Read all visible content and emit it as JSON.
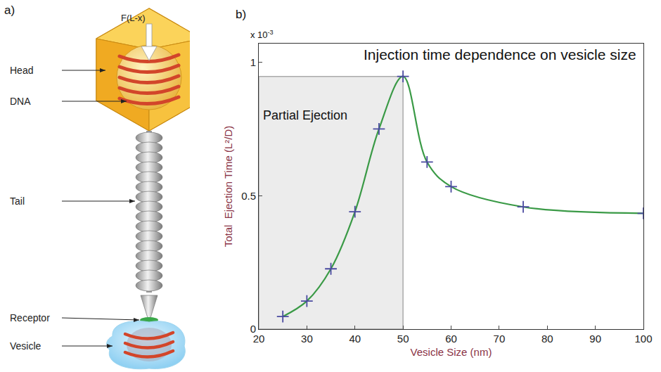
{
  "diagram": {
    "panel_label": "a)",
    "force_label": "F(L-x)",
    "parts": [
      {
        "label": "Head"
      },
      {
        "label": "DNA"
      },
      {
        "label": "Tail"
      },
      {
        "label": "Receptor"
      },
      {
        "label": "Vesicle"
      }
    ]
  },
  "chart_data": {
    "panel_label": "b)",
    "type": "line",
    "title": "Injection time dependence on vesicle size",
    "x_label": "Vesicle Size (nm)",
    "y_label": "Total  Ejection Time (L²/D)",
    "y_multiplier": "x 10",
    "y_multiplier_exponent": "-3",
    "x": [
      25,
      30,
      35,
      40,
      45,
      50,
      55,
      60,
      75,
      100
    ],
    "values": [
      0.047,
      0.105,
      0.226,
      0.44,
      0.75,
      0.947,
      0.626,
      0.534,
      0.458,
      0.434
    ],
    "color": "#3a9a46",
    "marker": "cross",
    "line_style": "spline",
    "xlim": [
      20,
      100
    ],
    "xticks": [
      20,
      30,
      40,
      50,
      60,
      70,
      80,
      90,
      100
    ],
    "ylim": [
      0,
      1.07
    ],
    "yticks": [
      0,
      0.5,
      1
    ],
    "grid": false,
    "shaded_region": {
      "label": "Partial Ejection",
      "x": [
        20,
        50
      ],
      "y": [
        0,
        0.947
      ]
    }
  }
}
